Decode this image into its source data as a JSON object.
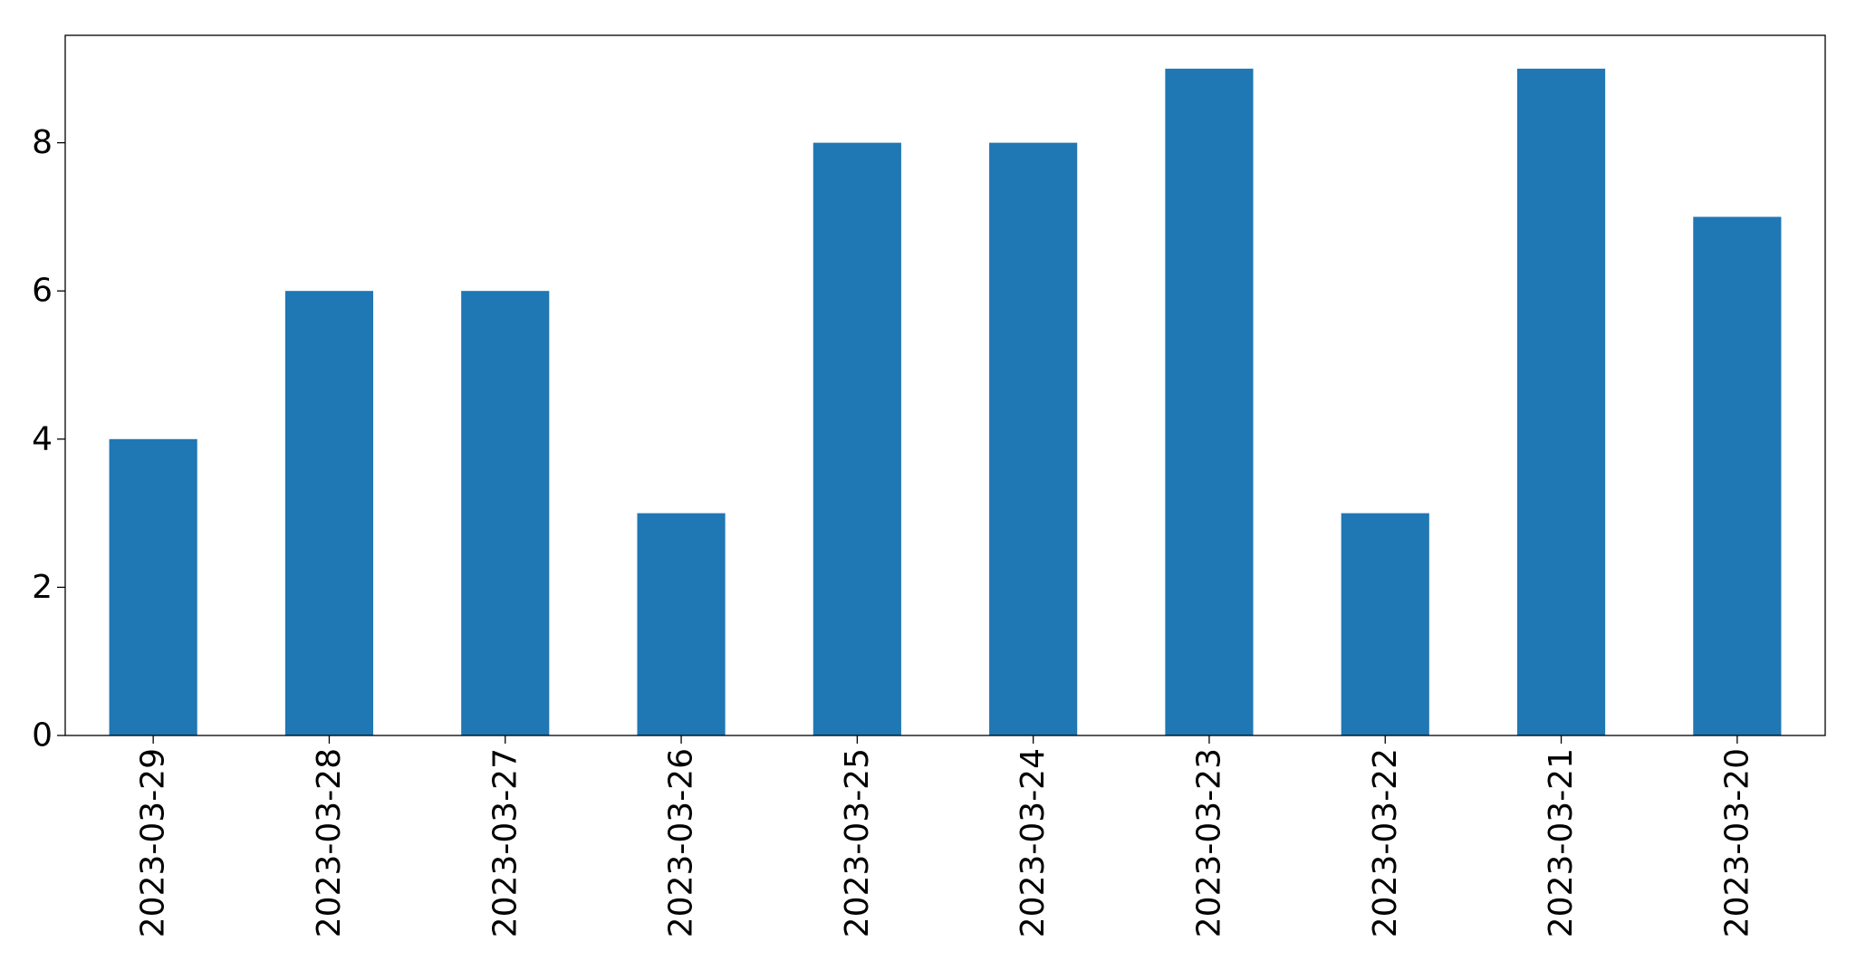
{
  "chart_data": {
    "type": "bar",
    "title": "",
    "xlabel": "",
    "ylabel": "",
    "categories": [
      "2023-03-29",
      "2023-03-28",
      "2023-03-27",
      "2023-03-26",
      "2023-03-25",
      "2023-03-24",
      "2023-03-23",
      "2023-03-22",
      "2023-03-21",
      "2023-03-20"
    ],
    "values": [
      4,
      6,
      6,
      3,
      8,
      8,
      9,
      3,
      9,
      7
    ],
    "ylim": [
      0,
      9.45
    ],
    "yticks": [
      0,
      2,
      4,
      6,
      8
    ],
    "ytick_labels": [
      "0",
      "2",
      "4",
      "6",
      "8"
    ],
    "xtick_rotation": "vertical",
    "grid": false,
    "legend": "none",
    "bar_color": "#1f77b4"
  }
}
